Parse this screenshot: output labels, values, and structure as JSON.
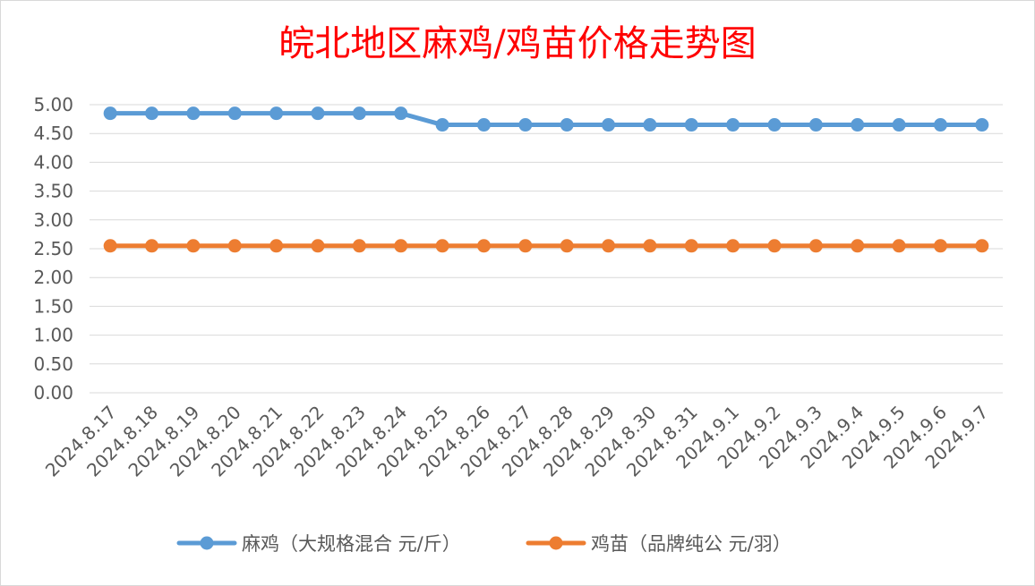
{
  "chart_data": {
    "type": "line",
    "title": "皖北地区麻鸡/鸡苗价格走势图",
    "xlabel": "",
    "ylabel": "",
    "ylim": [
      0,
      5
    ],
    "ytick_labels": [
      "0.00",
      "0.50",
      "1.00",
      "1.50",
      "2.00",
      "2.50",
      "3.00",
      "3.50",
      "4.00",
      "4.50",
      "5.00"
    ],
    "categories": [
      "2024.8.17",
      "2024.8.18",
      "2024.8.19",
      "2024.8.20",
      "2024.8.21",
      "2024.8.22",
      "2024.8.23",
      "2024.8.24",
      "2024.8.25",
      "2024.8.26",
      "2024.8.27",
      "2024.8.28",
      "2024.8.29",
      "2024.8.30",
      "2024.8.31",
      "2024.9.1",
      "2024.9.2",
      "2024.9.3",
      "2024.9.4",
      "2024.9.5",
      "2024.9.6",
      "2024.9.7"
    ],
    "series": [
      {
        "name": "麻鸡（大规格混合 元/斤）",
        "color": "#5b9bd5",
        "values": [
          4.85,
          4.85,
          4.85,
          4.85,
          4.85,
          4.85,
          4.85,
          4.85,
          4.65,
          4.65,
          4.65,
          4.65,
          4.65,
          4.65,
          4.65,
          4.65,
          4.65,
          4.65,
          4.65,
          4.65,
          4.65,
          4.65
        ]
      },
      {
        "name": "鸡苗（品牌纯公 元/羽）",
        "color": "#ed7d31",
        "values": [
          2.55,
          2.55,
          2.55,
          2.55,
          2.55,
          2.55,
          2.55,
          2.55,
          2.55,
          2.55,
          2.55,
          2.55,
          2.55,
          2.55,
          2.55,
          2.55,
          2.55,
          2.55,
          2.55,
          2.55,
          2.55,
          2.55
        ]
      }
    ],
    "grid": true,
    "legend_position": "bottom"
  }
}
